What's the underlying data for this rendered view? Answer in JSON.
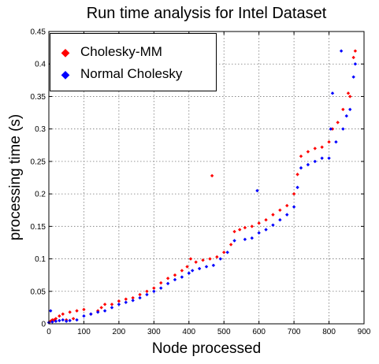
{
  "chart_data": {
    "type": "scatter",
    "title": "Run time analysis for Intel Dataset",
    "xlabel": "Node processed",
    "ylabel": "processing time (s)",
    "xlim": [
      0,
      900
    ],
    "ylim": [
      0,
      0.45
    ],
    "xticks": [
      "0",
      "100",
      "200",
      "300",
      "400",
      "500",
      "600",
      "700",
      "800",
      "900"
    ],
    "yticks": [
      "0",
      "0.05",
      "0.1",
      "0.15",
      "0.2",
      "0.25",
      "0.3",
      "0.35",
      "0.4",
      "0.45"
    ],
    "grid": true,
    "legend_position": "top-left",
    "series": [
      {
        "name": "Cholesky-MM",
        "color": "#ff0000",
        "points": [
          [
            0,
            0.002
          ],
          [
            5,
            0.004
          ],
          [
            10,
            0.006
          ],
          [
            15,
            0.006
          ],
          [
            20,
            0.008
          ],
          [
            30,
            0.012
          ],
          [
            40,
            0.015
          ],
          [
            50,
            0.006
          ],
          [
            60,
            0.018
          ],
          [
            70,
            0.008
          ],
          [
            80,
            0.02
          ],
          [
            100,
            0.022
          ],
          [
            120,
            0.015
          ],
          [
            140,
            0.02
          ],
          [
            150,
            0.025
          ],
          [
            160,
            0.03
          ],
          [
            180,
            0.03
          ],
          [
            200,
            0.035
          ],
          [
            220,
            0.038
          ],
          [
            240,
            0.04
          ],
          [
            260,
            0.045
          ],
          [
            280,
            0.05
          ],
          [
            300,
            0.055
          ],
          [
            320,
            0.063
          ],
          [
            340,
            0.07
          ],
          [
            360,
            0.075
          ],
          [
            380,
            0.082
          ],
          [
            395,
            0.088
          ],
          [
            405,
            0.1
          ],
          [
            420,
            0.095
          ],
          [
            440,
            0.098
          ],
          [
            460,
            0.1
          ],
          [
            466,
            0.228
          ],
          [
            480,
            0.103
          ],
          [
            500,
            0.11
          ],
          [
            520,
            0.122
          ],
          [
            530,
            0.142
          ],
          [
            545,
            0.145
          ],
          [
            560,
            0.148
          ],
          [
            580,
            0.15
          ],
          [
            600,
            0.155
          ],
          [
            620,
            0.16
          ],
          [
            640,
            0.168
          ],
          [
            660,
            0.175
          ],
          [
            680,
            0.182
          ],
          [
            700,
            0.2
          ],
          [
            710,
            0.23
          ],
          [
            720,
            0.258
          ],
          [
            740,
            0.265
          ],
          [
            760,
            0.27
          ],
          [
            780,
            0.272
          ],
          [
            800,
            0.28
          ],
          [
            810,
            0.3
          ],
          [
            825,
            0.31
          ],
          [
            840,
            0.33
          ],
          [
            855,
            0.355
          ],
          [
            860,
            0.35
          ],
          [
            870,
            0.41
          ],
          [
            875,
            0.42
          ]
        ]
      },
      {
        "name": "Normal Cholesky",
        "color": "#0000ff",
        "points": [
          [
            0,
            0.002
          ],
          [
            5,
            0.02
          ],
          [
            10,
            0.003
          ],
          [
            20,
            0.004
          ],
          [
            30,
            0.005
          ],
          [
            40,
            0.006
          ],
          [
            50,
            0.004
          ],
          [
            60,
            0.005
          ],
          [
            80,
            0.006
          ],
          [
            100,
            0.012
          ],
          [
            120,
            0.015
          ],
          [
            140,
            0.018
          ],
          [
            160,
            0.02
          ],
          [
            180,
            0.025
          ],
          [
            200,
            0.03
          ],
          [
            220,
            0.033
          ],
          [
            240,
            0.036
          ],
          [
            260,
            0.04
          ],
          [
            280,
            0.045
          ],
          [
            300,
            0.05
          ],
          [
            320,
            0.055
          ],
          [
            340,
            0.062
          ],
          [
            360,
            0.068
          ],
          [
            380,
            0.072
          ],
          [
            400,
            0.078
          ],
          [
            410,
            0.082
          ],
          [
            430,
            0.085
          ],
          [
            450,
            0.088
          ],
          [
            470,
            0.09
          ],
          [
            490,
            0.1
          ],
          [
            510,
            0.11
          ],
          [
            530,
            0.128
          ],
          [
            560,
            0.13
          ],
          [
            580,
            0.132
          ],
          [
            595,
            0.205
          ],
          [
            600,
            0.14
          ],
          [
            620,
            0.145
          ],
          [
            640,
            0.152
          ],
          [
            660,
            0.16
          ],
          [
            680,
            0.168
          ],
          [
            700,
            0.18
          ],
          [
            710,
            0.21
          ],
          [
            720,
            0.24
          ],
          [
            740,
            0.245
          ],
          [
            760,
            0.25
          ],
          [
            780,
            0.255
          ],
          [
            800,
            0.255
          ],
          [
            805,
            0.3
          ],
          [
            810,
            0.355
          ],
          [
            820,
            0.28
          ],
          [
            835,
            0.42
          ],
          [
            840,
            0.3
          ],
          [
            850,
            0.32
          ],
          [
            860,
            0.33
          ],
          [
            870,
            0.38
          ],
          [
            875,
            0.4
          ]
        ]
      }
    ]
  }
}
